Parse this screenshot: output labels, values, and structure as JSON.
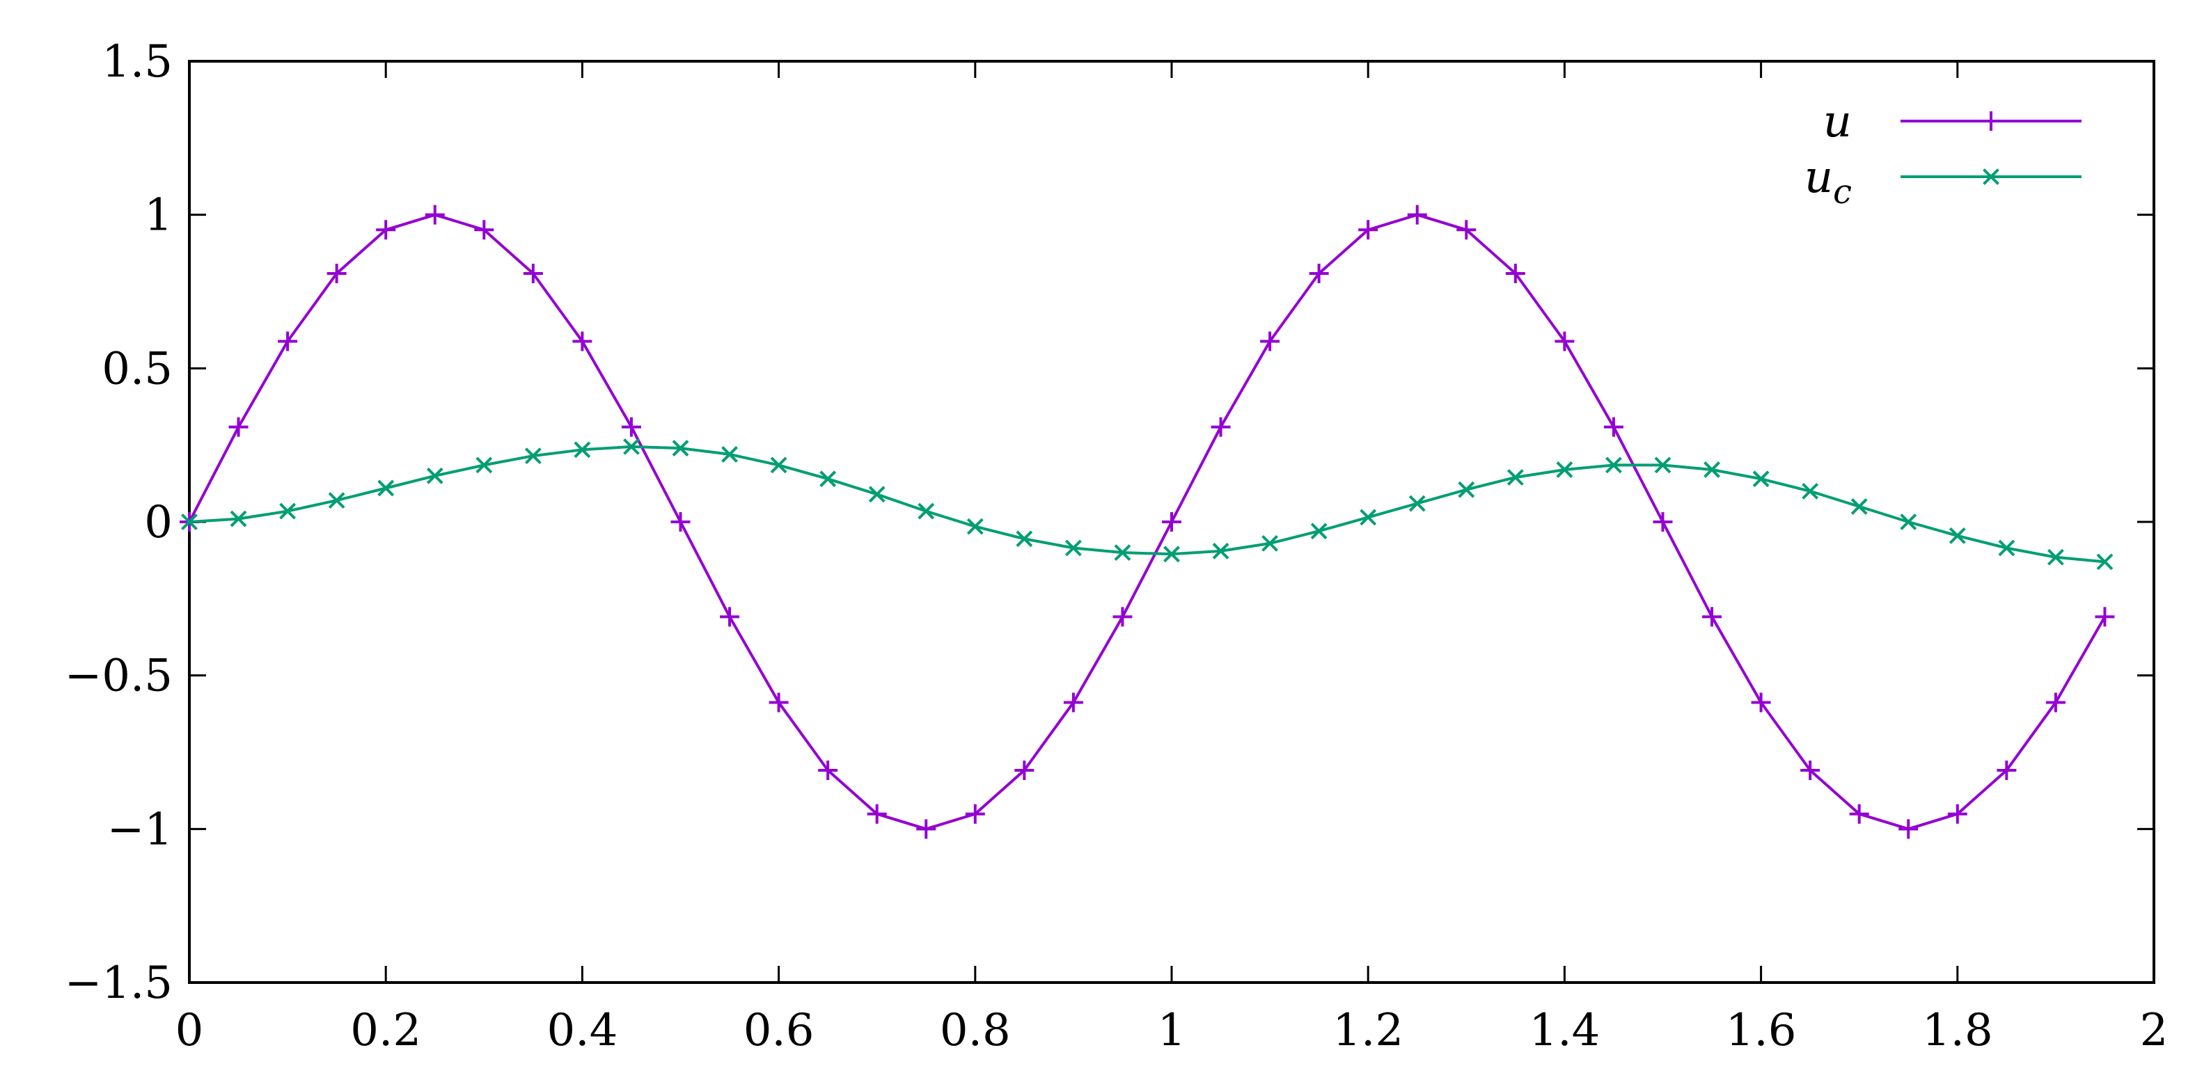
{
  "chart_data": {
    "type": "line",
    "xlim": [
      0,
      2
    ],
    "ylim": [
      -1.5,
      1.5
    ],
    "x_ticks": [
      0,
      0.2,
      0.4,
      0.6,
      0.8,
      1,
      1.2,
      1.4,
      1.6,
      1.8,
      2
    ],
    "x_tick_labels": [
      "0",
      "0.2",
      "0.4",
      "0.6",
      "0.8",
      "1",
      "1.2",
      "1.4",
      "1.6",
      "1.8",
      "2"
    ],
    "y_ticks": [
      -1.5,
      -1,
      -0.5,
      0,
      0.5,
      1,
      1.5
    ],
    "y_tick_labels": [
      "−1.5",
      "−1",
      "−0.5",
      "0",
      "0.5",
      "1",
      "1.5"
    ],
    "grid": false,
    "legend_position": "top-right",
    "x": [
      0,
      0.05,
      0.1,
      0.15,
      0.2,
      0.25,
      0.3,
      0.35,
      0.4,
      0.45,
      0.5,
      0.55,
      0.6,
      0.65,
      0.7,
      0.75,
      0.8,
      0.85,
      0.9,
      0.95,
      1.0,
      1.05,
      1.1,
      1.15,
      1.2,
      1.25,
      1.3,
      1.35,
      1.4,
      1.45,
      1.5,
      1.55,
      1.6,
      1.65,
      1.7,
      1.75,
      1.8,
      1.85,
      1.9,
      1.95
    ],
    "series": [
      {
        "name": "u",
        "color": "#9400d3",
        "marker": "plus",
        "values": [
          0,
          0.309,
          0.588,
          0.809,
          0.951,
          1.0,
          0.951,
          0.809,
          0.588,
          0.309,
          0,
          -0.309,
          -0.588,
          -0.809,
          -0.951,
          -1.0,
          -0.951,
          -0.809,
          -0.588,
          -0.309,
          0,
          0.309,
          0.588,
          0.809,
          0.951,
          1.0,
          0.951,
          0.809,
          0.588,
          0.309,
          0,
          -0.309,
          -0.588,
          -0.809,
          -0.951,
          -1.0,
          -0.951,
          -0.809,
          -0.588,
          -0.309
        ]
      },
      {
        "name": "u",
        "subscript": "c",
        "color": "#009e73",
        "marker": "cross",
        "values": [
          0,
          0.01,
          0.035,
          0.07,
          0.11,
          0.15,
          0.185,
          0.215,
          0.235,
          0.245,
          0.24,
          0.22,
          0.185,
          0.14,
          0.09,
          0.035,
          -0.015,
          -0.055,
          -0.085,
          -0.1,
          -0.105,
          -0.095,
          -0.07,
          -0.03,
          0.015,
          0.06,
          0.105,
          0.145,
          0.17,
          0.185,
          0.185,
          0.17,
          0.14,
          0.1,
          0.05,
          0.0,
          -0.045,
          -0.085,
          -0.115,
          -0.13
        ]
      }
    ]
  }
}
